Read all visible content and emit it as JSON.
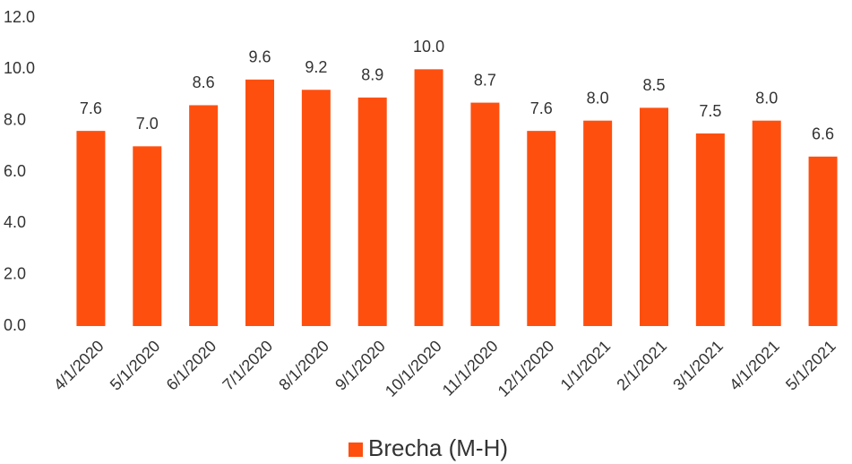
{
  "chart_data": {
    "type": "bar",
    "categories": [
      "4/1/2020",
      "5/1/2020",
      "6/1/2020",
      "7/1/2020",
      "8/1/2020",
      "9/1/2020",
      "10/1/2020",
      "11/1/2020",
      "12/1/2020",
      "1/1/2021",
      "2/1/2021",
      "3/1/2021",
      "4/1/2021",
      "5/1/2021"
    ],
    "series": [
      {
        "name": "Brecha (M-H)",
        "color": "#ff4f0f",
        "values": [
          7.6,
          7.0,
          8.6,
          9.6,
          9.2,
          8.9,
          10.0,
          8.7,
          7.6,
          8.0,
          8.5,
          7.5,
          8.0,
          6.6
        ],
        "value_labels": [
          "7.6",
          "7.0",
          "8.6",
          "9.6",
          "9.2",
          "8.9",
          "10.0",
          "8.7",
          "7.6",
          "8.0",
          "8.5",
          "7.5",
          "8.0",
          "6.6"
        ]
      }
    ],
    "ylim": [
      0,
      12
    ],
    "yticks": [
      {
        "value": 0,
        "label": "0.0"
      },
      {
        "value": 2,
        "label": "2.0"
      },
      {
        "value": 4,
        "label": "4.0"
      },
      {
        "value": 6,
        "label": "6.0"
      },
      {
        "value": 8,
        "label": "8.0"
      },
      {
        "value": 10,
        "label": "10.0"
      },
      {
        "value": 12,
        "label": "12.0"
      }
    ],
    "grid": false,
    "legend": "bottom"
  }
}
